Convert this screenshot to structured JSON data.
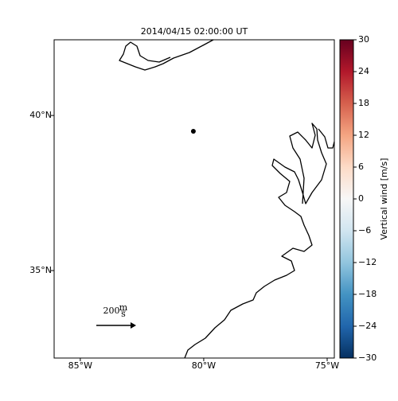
{
  "chart_data": {
    "type": "map",
    "title": "2014/04/15 02:00:00 UT",
    "x": [
      -80.42
    ],
    "y": [
      39.49
    ],
    "marker_color": "#000000",
    "xlim": [
      -86.06,
      -74.71
    ],
    "ylim": [
      32.18,
      42.44
    ],
    "xticks": [
      {
        "value": -85,
        "label": "85°W"
      },
      {
        "value": -80,
        "label": "80°W"
      },
      {
        "value": -75,
        "label": "75°W"
      }
    ],
    "yticks": [
      {
        "value": 35,
        "label": "35°N"
      },
      {
        "value": 40,
        "label": "40°N"
      }
    ],
    "colorbar": {
      "label": "Vertical wind [m/s]",
      "lim": [
        -30,
        30
      ],
      "ticks": [
        {
          "value": -30,
          "label": "−30"
        },
        {
          "value": -24,
          "label": "−24"
        },
        {
          "value": -18,
          "label": "−18"
        },
        {
          "value": -12,
          "label": "−12"
        },
        {
          "value": -6,
          "label": "−6"
        },
        0,
        6,
        12,
        18,
        24,
        30
      ],
      "colors": [
        "#053061",
        "#2166ac",
        "#4393c3",
        "#92c5de",
        "#d1e5f0",
        "#f7f7f7",
        "#fddbc7",
        "#f4a582",
        "#d6604d",
        "#b2182b",
        "#67001f"
      ]
    },
    "quiver_key": {
      "label": "200",
      "unit_numerator": "m",
      "unit_denominator": "s"
    }
  }
}
